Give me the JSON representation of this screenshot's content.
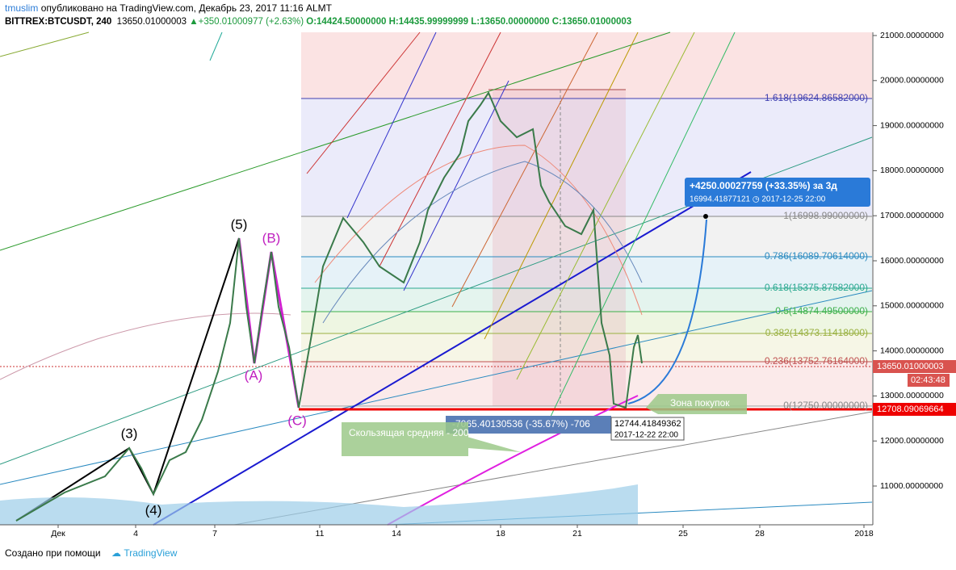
{
  "header": {
    "author": "tmuslim",
    "published": "опубликовано на TradingView.com, Декабрь 23, 2017 11:16 ALMT",
    "symbol": "BITTREX:BTCUSDT, 240",
    "last": "13650.01000003",
    "change": "+350.01000977 (+2.63%)",
    "open": "O:14424.50000000",
    "high": "H:14435.99999999",
    "low": "L:13650.00000000",
    "close": "C:13650.01000003"
  },
  "price_axis": [
    "21000.00000000",
    "20000.00000000",
    "19000.00000000",
    "18000.00000000",
    "17000.00000000",
    "16000.00000000",
    "15000.00000000",
    "14000.00000000",
    "13000.00000000",
    "12000.00000000",
    "11000.00000000"
  ],
  "price_labels": {
    "current": "13650.01000003",
    "countdown": "02:43:48",
    "line": "12708.09069664"
  },
  "time_axis": [
    "Дек",
    "4",
    "7",
    "11",
    "14",
    "18",
    "21",
    "25",
    "28",
    "2018"
  ],
  "fib_levels": [
    "1.618(19624.86582000)",
    "1(16998.99000000)",
    "0.786(16089.70614000)",
    "0.618(15375.87582000)",
    "0.5(14874.49500000)",
    "0.382(14373.11418000)",
    "0.236(13752.76164000)",
    "0(12750.00000000)"
  ],
  "waves": [
    "(3)",
    "(4)",
    "(5)",
    "(A)",
    "(B)",
    "(C)"
  ],
  "projection": {
    "line1": "+4250.00027759 (+33.35%) за 3д",
    "line2": "16994.41877121 ◷ 2017-12-25 22:00"
  },
  "measure": "-7065.40130536 (-35.67%) -706",
  "tooltip": {
    "price": "12744.41849362",
    "date": "2017-12-22 22:00"
  },
  "notes": {
    "buy_zone": "Зона покупок",
    "ma": "Скользящая средняя - 200"
  },
  "footer": {
    "made_with": "Создано при помощи",
    "brand": "TradingView"
  }
}
